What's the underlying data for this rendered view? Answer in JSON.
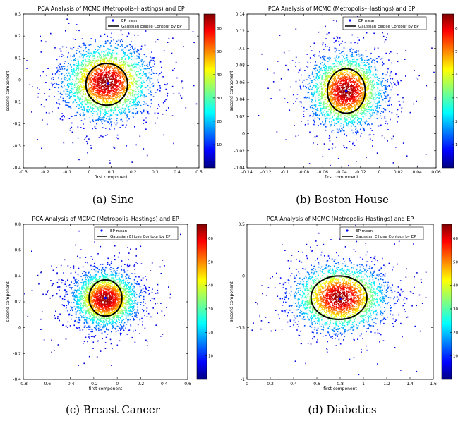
{
  "chart_data": [
    {
      "type": "scatter",
      "title": "PCA Analysis of MCMC (Metropolis–Hastings) and EP",
      "xlabel": "first component",
      "ylabel": "second component",
      "caption": "(a)  Sinc",
      "xlim": [
        -0.3,
        0.5
      ],
      "ylim": [
        -0.4,
        0.3
      ],
      "xticks": [
        -0.3,
        -0.2,
        -0.1,
        0,
        0.1,
        0.2,
        0.3,
        0.4,
        0.5
      ],
      "yticks": [
        -0.4,
        -0.3,
        -0.2,
        -0.1,
        0,
        0.1,
        0.2,
        0.3
      ],
      "xtick_labels": [
        "-0.3",
        "-0.2",
        "-0.1",
        "0",
        "0.1",
        "0.2",
        "0.3",
        "0.4",
        "0.5"
      ],
      "ytick_labels": [
        "-0.4",
        "-0.3",
        "-0.2",
        "-0.1",
        "0",
        "0.1",
        "0.2",
        "0.3"
      ],
      "cloud": {
        "mean": [
          0.08,
          -0.01
        ],
        "sd": [
          0.1,
          0.085
        ],
        "max_density": 65
      },
      "ep_mean": [
        0.085,
        -0.015
      ],
      "ellipse": {
        "center": [
          0.08,
          -0.02
        ],
        "radii": [
          0.095,
          0.095
        ]
      },
      "colorbar": {
        "ticks": [
          10,
          20,
          30,
          40,
          50,
          60
        ],
        "range": [
          0,
          66
        ]
      },
      "legend": {
        "items": [
          "EP mean",
          "Gaussian Ellipse Contour by EP"
        ],
        "position": "top-right"
      }
    },
    {
      "type": "scatter",
      "title": "PCA Analysis of MCMC (Metropolis–Hastings) and EP",
      "xlabel": "first component",
      "ylabel": "second component",
      "caption": "(b)  Boston House",
      "xlim": [
        -0.14,
        0.06
      ],
      "ylim": [
        -0.04,
        0.14
      ],
      "xticks": [
        -0.14,
        -0.12,
        -0.1,
        -0.08,
        -0.06,
        -0.04,
        -0.02,
        0,
        0.02,
        0.04,
        0.06
      ],
      "yticks": [
        -0.04,
        -0.02,
        0,
        0.02,
        0.04,
        0.06,
        0.08,
        0.1,
        0.12,
        0.14
      ],
      "xtick_labels": [
        "-0.14",
        "-0.12",
        "-0.1",
        "-0.08",
        "-0.06",
        "-0.04",
        "-0.02",
        "0",
        "0.02",
        "0.04",
        "0.06"
      ],
      "ytick_labels": [
        "-0.04",
        "-0.02",
        "0",
        "0.02",
        "0.04",
        "0.06",
        "0.08",
        "0.1",
        "0.12",
        "0.14"
      ],
      "cloud": {
        "mean": [
          -0.035,
          0.05
        ],
        "sd": [
          0.02,
          0.022
        ],
        "max_density": 65
      },
      "ep_mean": [
        -0.035,
        0.05
      ],
      "ellipse": {
        "center": [
          -0.035,
          0.05
        ],
        "radii": [
          0.02,
          0.026
        ]
      },
      "colorbar": {
        "ticks": [
          10,
          20,
          30,
          40,
          50,
          60
        ],
        "range": [
          0,
          66
        ]
      },
      "legend": {
        "items": [
          "EP mean",
          "Gaussian Ellipse Contour by EP"
        ],
        "position": "top-right"
      }
    },
    {
      "type": "scatter",
      "title": "PCA Analysis of MCMC (Metropolis–Hastings) and EP",
      "xlabel": "first component",
      "ylabel": "second component",
      "caption": "(c)  Breast Cancer",
      "xlim": [
        -0.8,
        0.6
      ],
      "ylim": [
        -0.4,
        0.8
      ],
      "xticks": [
        -0.8,
        -0.6,
        -0.4,
        -0.2,
        0,
        0.2,
        0.4,
        0.6
      ],
      "yticks": [
        -0.4,
        -0.2,
        0,
        0.2,
        0.4,
        0.6,
        0.8
      ],
      "xtick_labels": [
        "-0.8",
        "-0.6",
        "-0.4",
        "-0.2",
        "0",
        "0.2",
        "0.4",
        "0.6"
      ],
      "ytick_labels": [
        "-0.4",
        "-0.2",
        "0",
        "0.2",
        "0.4",
        "0.6",
        "0.8"
      ],
      "cloud": {
        "mean": [
          -0.1,
          0.22
        ],
        "sd": [
          0.14,
          0.11
        ],
        "max_density": 65
      },
      "ep_mean": [
        -0.1,
        0.23
      ],
      "ellipse": {
        "center": [
          -0.1,
          0.23
        ],
        "radii": [
          0.14,
          0.14
        ]
      },
      "colorbar": {
        "ticks": [
          10,
          20,
          30,
          40,
          50,
          60
        ],
        "range": [
          0,
          66
        ]
      },
      "legend": {
        "items": [
          "EP mean",
          "Gaussian Ellipse Contour by EP"
        ],
        "position": "top-right"
      }
    },
    {
      "type": "scatter",
      "title": "PCA Analysis of MCMC (Metropolis–Hastings) and EP",
      "xlabel": "first component",
      "ylabel": "second component",
      "caption": "(d)  Diabetics",
      "xlim": [
        0,
        1.6
      ],
      "ylim": [
        -1,
        0.5
      ],
      "xticks": [
        0,
        0.2,
        0.4,
        0.6,
        0.8,
        1,
        1.2,
        1.4,
        1.6
      ],
      "yticks": [
        -1,
        -0.5,
        0,
        0.5
      ],
      "xtick_labels": [
        "0",
        "0.2",
        "0.4",
        "0.6",
        "0.8",
        "1",
        "1.2",
        "1.4",
        "1.6"
      ],
      "ytick_labels": [
        "-1",
        "-0.5",
        "0",
        "0.5"
      ],
      "cloud": {
        "mean": [
          0.8,
          -0.21
        ],
        "sd": [
          0.2,
          0.16
        ],
        "max_density": 65
      },
      "ep_mean": [
        0.8,
        -0.22
      ],
      "ellipse": {
        "center": [
          0.79,
          -0.21
        ],
        "radii": [
          0.24,
          0.21
        ]
      },
      "colorbar": {
        "ticks": [
          10,
          20,
          30,
          40,
          50,
          60
        ],
        "range": [
          0,
          66
        ]
      },
      "legend": {
        "items": [
          "EP mean",
          "Gaussian Ellipse Contour by EP"
        ],
        "position": "top-right"
      }
    }
  ]
}
